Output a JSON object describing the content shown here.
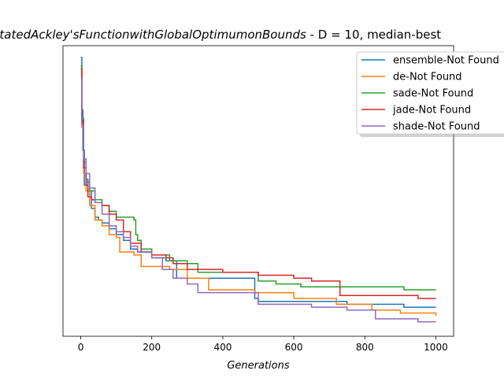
{
  "chart_data": {
    "type": "line",
    "title_math": "RotatedAckley'sFunctionwithGlobalOptimumonBounds",
    "title_rest": "  - D = 10, median-best",
    "xlabel": "Generations",
    "ylabel": "",
    "xlim": [
      -50,
      1050
    ],
    "ylim": [
      0,
      100
    ],
    "xticks": [
      0,
      200,
      400,
      600,
      800,
      1000
    ],
    "xtick_labels": [
      "0",
      "200",
      "400",
      "600",
      "800",
      "1000"
    ],
    "yticks_shown": false,
    "grid": false,
    "legend_position": "upper right",
    "series": [
      {
        "name": "ensemble-Not Found",
        "color": "#1f77b4",
        "points": [
          [
            0,
            96
          ],
          [
            3,
            78
          ],
          [
            6,
            64
          ],
          [
            10,
            52
          ],
          [
            15,
            54
          ],
          [
            20,
            50
          ],
          [
            30,
            44
          ],
          [
            40,
            41
          ],
          [
            50,
            40
          ],
          [
            60,
            39
          ],
          [
            80,
            37
          ],
          [
            100,
            35
          ],
          [
            120,
            33
          ],
          [
            140,
            30
          ],
          [
            160,
            29
          ],
          [
            200,
            27
          ],
          [
            240,
            26
          ],
          [
            270,
            20
          ],
          [
            300,
            20
          ],
          [
            400,
            20
          ],
          [
            480,
            20
          ],
          [
            490,
            13
          ],
          [
            500,
            12
          ],
          [
            600,
            12
          ],
          [
            700,
            12
          ],
          [
            750,
            11
          ],
          [
            800,
            11
          ],
          [
            900,
            11
          ],
          [
            910,
            10
          ],
          [
            1000,
            10
          ]
        ]
      },
      {
        "name": "de-Not Found",
        "color": "#ff7f0e",
        "points": [
          [
            0,
            91
          ],
          [
            3,
            72
          ],
          [
            8,
            56
          ],
          [
            15,
            50
          ],
          [
            25,
            45
          ],
          [
            40,
            40
          ],
          [
            60,
            38
          ],
          [
            80,
            35
          ],
          [
            100,
            34
          ],
          [
            110,
            29
          ],
          [
            150,
            28
          ],
          [
            170,
            24
          ],
          [
            200,
            24
          ],
          [
            230,
            24
          ],
          [
            250,
            23
          ],
          [
            300,
            20
          ],
          [
            340,
            20
          ],
          [
            360,
            16
          ],
          [
            400,
            16
          ],
          [
            480,
            16
          ],
          [
            490,
            15
          ],
          [
            550,
            15
          ],
          [
            600,
            13
          ],
          [
            700,
            13
          ],
          [
            720,
            11
          ],
          [
            800,
            11
          ],
          [
            820,
            9
          ],
          [
            900,
            8
          ],
          [
            1000,
            8
          ],
          [
            1000,
            7
          ]
        ]
      },
      {
        "name": "sade-Not Found",
        "color": "#2ca02c",
        "points": [
          [
            0,
            93
          ],
          [
            3,
            75
          ],
          [
            8,
            60
          ],
          [
            15,
            53
          ],
          [
            25,
            50
          ],
          [
            40,
            47
          ],
          [
            60,
            45
          ],
          [
            80,
            43
          ],
          [
            100,
            41
          ],
          [
            150,
            40
          ],
          [
            155,
            35
          ],
          [
            160,
            33
          ],
          [
            170,
            30
          ],
          [
            200,
            28
          ],
          [
            230,
            28
          ],
          [
            250,
            26
          ],
          [
            300,
            25
          ],
          [
            330,
            22
          ],
          [
            400,
            22
          ],
          [
            480,
            22
          ],
          [
            500,
            19
          ],
          [
            550,
            18
          ],
          [
            600,
            18
          ],
          [
            620,
            17
          ],
          [
            800,
            17
          ],
          [
            900,
            17
          ],
          [
            910,
            16
          ],
          [
            1000,
            16
          ]
        ]
      },
      {
        "name": "jade-Not Found",
        "color": "#d62728",
        "points": [
          [
            0,
            92
          ],
          [
            3,
            74
          ],
          [
            8,
            58
          ],
          [
            15,
            52
          ],
          [
            20,
            48
          ],
          [
            30,
            47
          ],
          [
            40,
            46
          ],
          [
            60,
            45
          ],
          [
            80,
            42
          ],
          [
            100,
            40
          ],
          [
            120,
            36
          ],
          [
            140,
            32
          ],
          [
            170,
            29
          ],
          [
            200,
            28
          ],
          [
            240,
            27
          ],
          [
            260,
            25
          ],
          [
            300,
            23
          ],
          [
            400,
            22
          ],
          [
            480,
            22
          ],
          [
            500,
            21
          ],
          [
            600,
            20
          ],
          [
            650,
            19
          ],
          [
            700,
            19
          ],
          [
            730,
            14
          ],
          [
            750,
            14
          ],
          [
            800,
            14
          ],
          [
            900,
            14
          ],
          [
            950,
            13
          ],
          [
            1000,
            13
          ]
        ]
      },
      {
        "name": "shade-Not Found",
        "color": "#9467bd",
        "points": [
          [
            0,
            89
          ],
          [
            3,
            73
          ],
          [
            8,
            61
          ],
          [
            15,
            56
          ],
          [
            25,
            51
          ],
          [
            40,
            46
          ],
          [
            60,
            42
          ],
          [
            80,
            38
          ],
          [
            100,
            36
          ],
          [
            120,
            34
          ],
          [
            140,
            31
          ],
          [
            160,
            29
          ],
          [
            200,
            27
          ],
          [
            230,
            23
          ],
          [
            260,
            20
          ],
          [
            300,
            18
          ],
          [
            330,
            15
          ],
          [
            360,
            15
          ],
          [
            400,
            15
          ],
          [
            480,
            15
          ],
          [
            500,
            11
          ],
          [
            550,
            11
          ],
          [
            600,
            11
          ],
          [
            650,
            10
          ],
          [
            750,
            9
          ],
          [
            800,
            9
          ],
          [
            830,
            6
          ],
          [
            900,
            6
          ],
          [
            950,
            5
          ],
          [
            1000,
            5
          ]
        ]
      }
    ]
  }
}
